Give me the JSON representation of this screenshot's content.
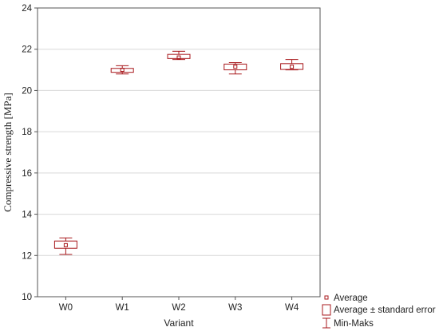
{
  "chart_data": {
    "type": "box",
    "xlabel": "Variant",
    "ylabel": "Compressive strength [MPa]",
    "ylim": [
      10,
      24
    ],
    "yticks": [
      10,
      12,
      14,
      16,
      18,
      20,
      22,
      24
    ],
    "grid": true,
    "legend_position": "bottom-right",
    "categories": [
      "W0",
      "W1",
      "W2",
      "W3",
      "W4"
    ],
    "series": [
      {
        "values": [
          {
            "category": "W0",
            "average": 12.5,
            "se_low": 12.35,
            "se_high": 12.7,
            "min": 12.05,
            "max": 12.85
          },
          {
            "category": "W1",
            "average": 21.0,
            "se_low": 20.88,
            "se_high": 21.07,
            "min": 20.8,
            "max": 21.2
          },
          {
            "category": "W2",
            "average": 21.6,
            "se_low": 21.55,
            "se_high": 21.75,
            "min": 21.5,
            "max": 21.9
          },
          {
            "category": "W3",
            "average": 21.15,
            "se_low": 21.0,
            "se_high": 21.28,
            "min": 20.8,
            "max": 21.35
          },
          {
            "category": "W4",
            "average": 21.15,
            "se_low": 21.02,
            "se_high": 21.3,
            "min": 21.0,
            "max": 21.5
          }
        ]
      }
    ],
    "legend": [
      {
        "symbol": "average",
        "label": "Average"
      },
      {
        "symbol": "box",
        "label": "Average ± standard error"
      },
      {
        "symbol": "whisker",
        "label": "Min-Maks"
      }
    ]
  },
  "colors": {
    "marks": "#a8181c",
    "grid": "#d9d9d9",
    "axis": "#555555"
  }
}
